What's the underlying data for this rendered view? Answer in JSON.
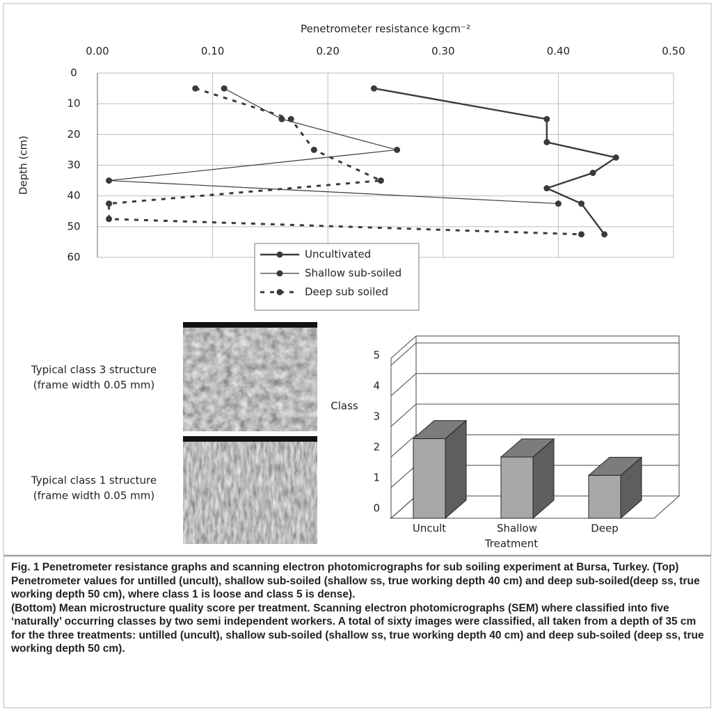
{
  "chart_data": [
    {
      "type": "line",
      "title": "Penetrometer resistance kgcm⁻²",
      "y_label": "Depth (cm)",
      "xlim": [
        0,
        0.5
      ],
      "xticks": [
        {
          "value": 0,
          "label": "0.00"
        },
        {
          "value": 0.1,
          "label": "0.10"
        },
        {
          "value": 0.2,
          "label": "0.20"
        },
        {
          "value": 0.3,
          "label": "0.30"
        },
        {
          "value": 0.4,
          "label": "0.40"
        },
        {
          "value": 0.5,
          "label": "0.50"
        }
      ],
      "ylim": [
        0,
        60
      ],
      "yticks": [
        0,
        10,
        20,
        30,
        40,
        50,
        60
      ],
      "y_inverted": true,
      "grid": true,
      "legend": "lower center",
      "series": [
        {
          "name": "Uncultivated",
          "color": "#3a3a3a",
          "line_style": "solid",
          "x": [
            0.24,
            0.39,
            0.39,
            0.45,
            0.43,
            0.39,
            0.42,
            0.44
          ],
          "values": [
            5,
            15,
            22.5,
            27.5,
            32.5,
            37.5,
            42.5,
            52.5
          ]
        },
        {
          "name": "Shallow sub-soiled",
          "color": "#3a3a3a",
          "line_style": "thin",
          "x": [
            0.11,
            0.16,
            0.26,
            0.01,
            0.4
          ],
          "values": [
            5,
            15,
            25,
            35,
            42.5
          ]
        },
        {
          "name": "Deep sub soiled",
          "color": "#3a3a3a",
          "line_style": "dashed",
          "x": [
            0.085,
            0.168,
            0.188,
            0.246,
            0.01,
            0.01,
            0.42
          ],
          "values": [
            5,
            15,
            25,
            35,
            42.5,
            47.5,
            52.5
          ]
        }
      ]
    },
    {
      "type": "bar3d",
      "y_label": "Class",
      "x_label": "Treatment",
      "categories": [
        "Uncult",
        "Shallow",
        "Deep"
      ],
      "values": [
        2.6,
        2.0,
        1.4
      ],
      "color": "#a8a8a8",
      "ylim": [
        0,
        5
      ],
      "yticks": [
        0,
        1,
        2,
        3,
        4,
        5
      ],
      "grid": true
    }
  ],
  "images": [
    {
      "label": [
        "Typical class 3 structure",
        "(frame width 0.05 mm)"
      ]
    },
    {
      "label": [
        "Typical class 1 structure",
        "(frame width 0.05 mm)"
      ]
    }
  ],
  "caption": [
    "Fig. 1  Penetrometer resistance graphs and scanning electron photomicrographs for sub soiling experiment at Bursa, Turkey.  (Top) Penetrometer values for untilled (uncult), shallow sub-soiled (shallow ss, true working depth 40 cm) and deep sub-soiled(deep ss, true working depth 50 cm), where class 1 is loose and class 5 is dense).",
    "(Bottom) Mean microstructure quality score per treatment.  Scanning electron photomicrographs (SEM) where classified into five ‘naturally’ occurring classes by two semi independent workers.  A total of sixty images were classified, all taken from a depth of 35 cm for the three treatments: untilled (uncult), shallow sub-soiled (shallow ss, true working depth 40 cm) and deep sub-soiled (deep ss, true working depth 50 cm)."
  ]
}
